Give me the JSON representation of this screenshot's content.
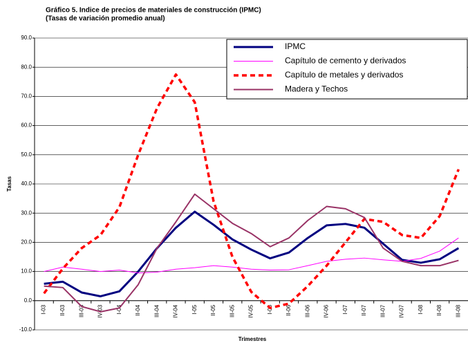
{
  "chart_data": {
    "type": "line",
    "title": "Gráfico 5. Indice de precios de materiales de construcción (IPMC)",
    "subtitle": "(Tasas de variación promedio anual)",
    "y_label": "Tasas",
    "x_label": "Trimestres",
    "categories": [
      "I-03",
      "II-03",
      "III-03",
      "IV-03",
      "I-04",
      "II-04",
      "III-04",
      "IV-04",
      "I-05",
      "II-05",
      "III-05",
      "IV-05",
      "I-06",
      "II-06",
      "III-06",
      "IV-06",
      "I-07",
      "II-07",
      "III-07",
      "IV-07",
      "I-08",
      "II-08",
      "III-08"
    ],
    "series": [
      {
        "name": "IPMC",
        "color": "#000080",
        "width": 3,
        "dash": false,
        "values": [
          5.8,
          6.5,
          2.8,
          1.5,
          3.2,
          10,
          18,
          25,
          30.5,
          26,
          21,
          17.5,
          14.5,
          16.5,
          21.5,
          25.8,
          26.3,
          25,
          19.5,
          14,
          13,
          14.2,
          18
        ]
      },
      {
        "name": "Capítulo de cemento y derivados",
        "color": "#ff00ff",
        "width": 1,
        "dash": false,
        "values": [
          10,
          11.5,
          10.8,
          10,
          10.5,
          9.5,
          9.8,
          10.8,
          11.3,
          12,
          11.5,
          10.8,
          10.5,
          10.6,
          12,
          13.5,
          14.2,
          14.6,
          14,
          13.5,
          14.5,
          17,
          21.5
        ]
      },
      {
        "name": "Capítulo de metales y derivados",
        "color": "#ff0000",
        "width": 3.5,
        "dash": true,
        "values": [
          2.5,
          11,
          18,
          22.5,
          32,
          50,
          66,
          77.5,
          68,
          34,
          15,
          3,
          -2.5,
          -1,
          5,
          12,
          20,
          28,
          27,
          22.5,
          21.5,
          29,
          45
        ]
      },
      {
        "name": "Madera y Techos",
        "color": "#993366",
        "width": 2,
        "dash": false,
        "values": [
          5,
          4.5,
          -2,
          -3.8,
          -2.5,
          5.5,
          18,
          27,
          36.5,
          31.5,
          26.5,
          23,
          18.5,
          21.5,
          27.5,
          32.3,
          31.5,
          28.5,
          18,
          13.5,
          12,
          12,
          13.8
        ]
      }
    ],
    "ylim": [
      -10,
      90
    ],
    "yticks": [
      {
        "value": -10,
        "label": "-10.0"
      },
      {
        "value": 0,
        "label": "0.0"
      },
      {
        "value": 10,
        "label": "10.0"
      },
      {
        "value": 20,
        "label": "20.0"
      },
      {
        "value": 30,
        "label": "30.0"
      },
      {
        "value": 40,
        "label": "40.0"
      },
      {
        "value": 50,
        "label": "50.0"
      },
      {
        "value": 60,
        "label": "60.0"
      },
      {
        "value": 70,
        "label": "70.0"
      },
      {
        "value": 80,
        "label": "80.0"
      },
      {
        "value": 90,
        "label": "90.0"
      }
    ],
    "grid": true
  }
}
